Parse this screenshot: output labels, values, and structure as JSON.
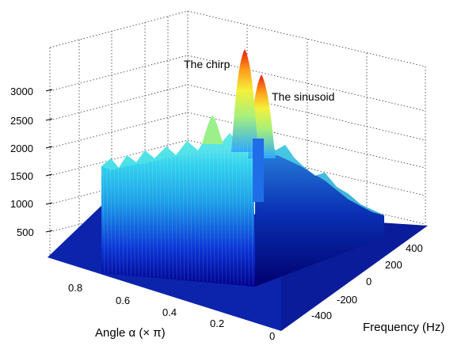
{
  "chart_data": {
    "type": "surface3d",
    "title": "",
    "zlabel": "",
    "xlabel": "Angle α (× π)",
    "ylabel": "Frequency (Hz)",
    "z_ticks": [
      "500",
      "1000",
      "1500",
      "2000",
      "2500",
      "3000"
    ],
    "x_ticks": [
      "0.8",
      "0.6",
      "0.4",
      "0.2",
      "0"
    ],
    "y_ticks": [
      "-400",
      "-200",
      "0",
      "200",
      "400"
    ],
    "xlim": [
      0,
      1
    ],
    "ylim": [
      -500,
      500
    ],
    "zlim": [
      0,
      3500
    ],
    "grid": true,
    "colormap": "jet",
    "annotations": [
      {
        "text": "The chirp",
        "x": 0.5,
        "y": 0,
        "z": 3150
      },
      {
        "text": "The sinusoid",
        "x": 0.5,
        "y": 0,
        "z": 2900
      }
    ],
    "features": [
      {
        "name": "peak",
        "x": 0.5,
        "y": 0,
        "z": 3200
      },
      {
        "name": "peak",
        "x": 0.5,
        "y": 0,
        "z": 2950
      },
      {
        "name": "background",
        "z_approx": 1500
      }
    ]
  }
}
